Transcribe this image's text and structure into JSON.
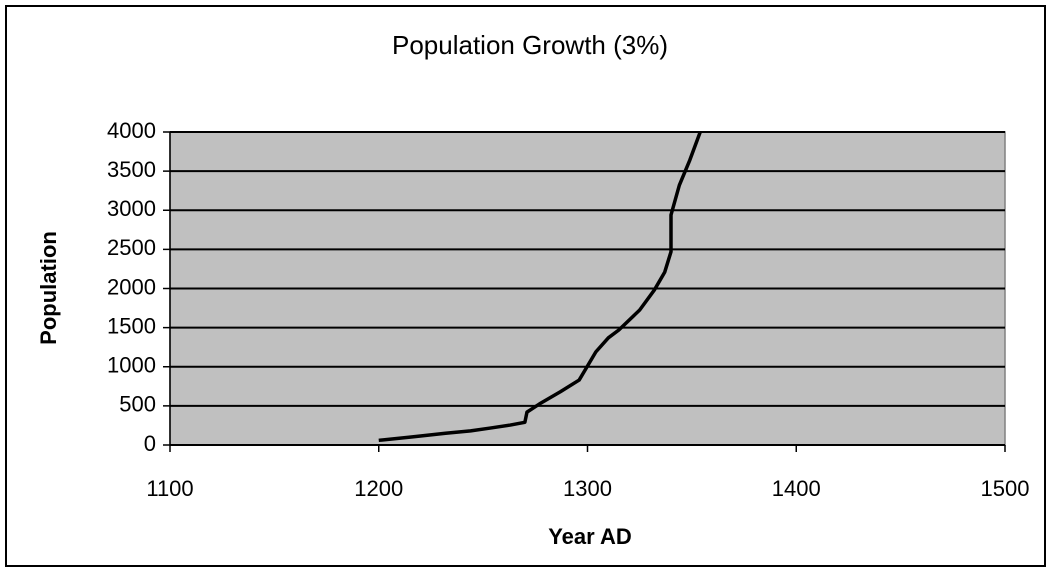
{
  "chart_data": {
    "type": "line",
    "title": "Population Growth (3%)",
    "x_label": "Year AD",
    "y_label": "Population",
    "x": [
      1200,
      1215,
      1220,
      1232,
      1244,
      1253,
      1263,
      1270,
      1271,
      1277,
      1287,
      1296,
      1300,
      1304,
      1310,
      1315,
      1325,
      1332,
      1337,
      1340,
      1340,
      1344,
      1349,
      1354
    ],
    "values": [
      60,
      100,
      115,
      150,
      180,
      215,
      255,
      290,
      420,
      525,
      680,
      830,
      1010,
      1190,
      1370,
      1470,
      1725,
      1980,
      2210,
      2470,
      2940,
      3320,
      3640,
      4000
    ],
    "color": "#000000",
    "plot_background": "#c0c0c0",
    "xlim": [
      1100,
      1500
    ],
    "xticks": [
      1100,
      1200,
      1300,
      1400,
      1500
    ],
    "ylim": [
      0,
      4000
    ],
    "yticks": [
      0,
      500,
      1000,
      1500,
      2000,
      2500,
      3000,
      3500,
      4000
    ],
    "grid": true
  }
}
